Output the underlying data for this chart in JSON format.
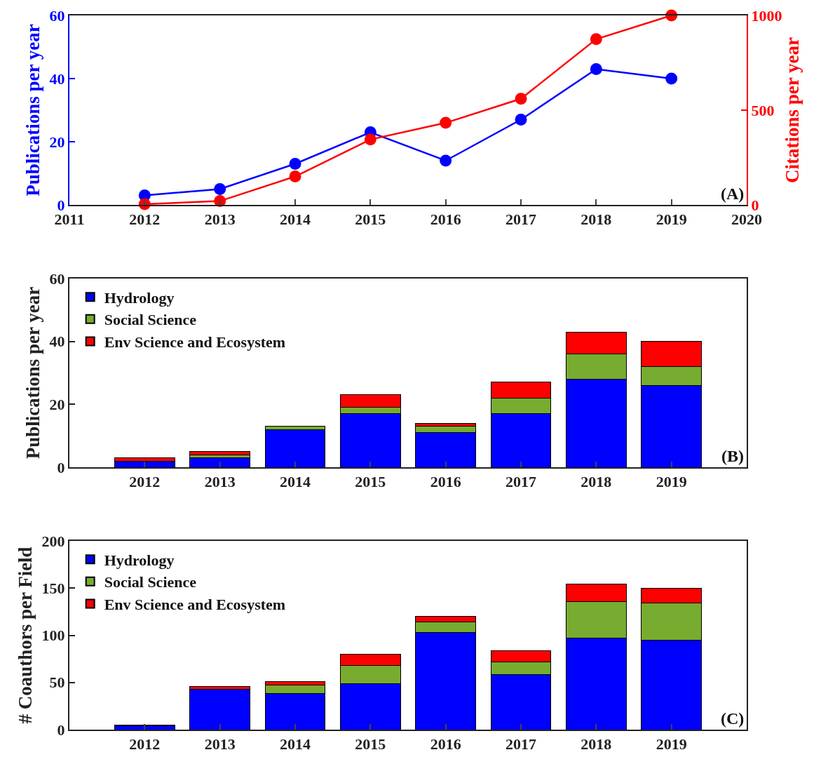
{
  "chart_data": [
    {
      "type": "line",
      "ylabel": "Publications per year",
      "y2label": "Citations per year",
      "x": [
        2012,
        2013,
        2014,
        2015,
        2016,
        2017,
        2018,
        2019
      ],
      "xlim": [
        2011,
        2020
      ],
      "xticks": [
        2011,
        2012,
        2013,
        2014,
        2015,
        2016,
        2017,
        2018,
        2019,
        2020
      ],
      "ylim": [
        0,
        60
      ],
      "yticks": [
        0,
        20,
        40,
        60
      ],
      "y2lim": [
        0,
        1000
      ],
      "y2ticks": [
        0,
        500,
        1000
      ],
      "marker": "circle",
      "grid": false,
      "legend": false,
      "annotations": [
        "(A)"
      ],
      "series": [
        {
          "color": "#0000ff",
          "values": [
            3,
            5,
            13,
            23,
            14,
            27,
            43,
            40
          ]
        },
        {
          "color": "#ff0000",
          "axis": "y2",
          "values": [
            4,
            20,
            150,
            345,
            433,
            560,
            875,
            1000
          ]
        }
      ]
    },
    {
      "type": "bar",
      "stacked": true,
      "ylabel": "Publications per year",
      "categories": [
        "2012",
        "2013",
        "2014",
        "2015",
        "2016",
        "2017",
        "2018",
        "2019"
      ],
      "ylim": [
        0,
        60
      ],
      "yticks": [
        0,
        20,
        40,
        60
      ],
      "grid": false,
      "legend": "top left",
      "annotations": [
        "(B)"
      ],
      "series": [
        {
          "name": "Hydrology",
          "color": "#0000ff",
          "values": [
            2,
            3,
            12,
            17,
            11,
            17,
            28,
            26
          ]
        },
        {
          "name": "Social Science",
          "color": "#77ac30",
          "values": [
            0,
            1,
            1,
            2,
            2,
            5,
            8,
            6
          ]
        },
        {
          "name": "Env Science and Ecosystem",
          "color": "#ff0000",
          "values": [
            1,
            1,
            0,
            4,
            1,
            5,
            7,
            8
          ]
        }
      ]
    },
    {
      "type": "bar",
      "stacked": true,
      "ylabel": "# Coauthors per Field",
      "categories": [
        "2012",
        "2013",
        "2014",
        "2015",
        "2016",
        "2017",
        "2018",
        "2019"
      ],
      "ylim": [
        0,
        200
      ],
      "yticks": [
        0,
        50,
        100,
        150,
        200
      ],
      "grid": false,
      "legend": "top left",
      "annotations": [
        "(C)"
      ],
      "series": [
        {
          "name": "Hydrology",
          "color": "#0000ff",
          "values": [
            4,
            43,
            38,
            49,
            103,
            58,
            97,
            95
          ]
        },
        {
          "name": "Social Science",
          "color": "#77ac30",
          "values": [
            0,
            0,
            9,
            19,
            11,
            14,
            39,
            39
          ]
        },
        {
          "name": "Env Science and Ecosystem",
          "color": "#ff0000",
          "values": [
            1,
            3,
            4,
            12,
            6,
            12,
            18,
            16
          ]
        }
      ]
    }
  ]
}
